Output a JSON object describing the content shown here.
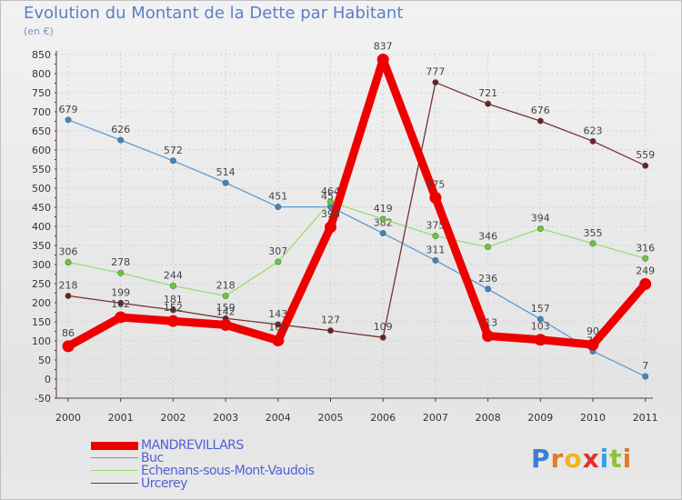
{
  "header": {
    "title": "Evolution du Montant de la Dette par Habitant",
    "subtitle": "(en €)"
  },
  "logo": {
    "letters": [
      "P",
      "r",
      "o",
      "x",
      "i",
      "t",
      "i"
    ],
    "colors": [
      "#3a7fd5",
      "#e07b2a",
      "#f0b520",
      "#e03030",
      "#3a9de0",
      "#8cc43c",
      "#e07b2a"
    ]
  },
  "chart_data": {
    "type": "line",
    "title": "Evolution du Montant de la Dette par Habitant",
    "ylabel": "(en €)",
    "xlabel": "",
    "categories": [
      "2000",
      "2001",
      "2002",
      "2003",
      "2004",
      "2005",
      "2006",
      "2007",
      "2008",
      "2009",
      "2010",
      "2011"
    ],
    "ylim": [
      -50,
      850
    ],
    "yticks": [
      "-50",
      "0",
      "50",
      "100",
      "150",
      "200",
      "250",
      "300",
      "350",
      "400",
      "450",
      "500",
      "550",
      "600",
      "650",
      "700",
      "750",
      "800",
      "850"
    ],
    "grid": true,
    "series": [
      {
        "name": "MANDREVILLARS",
        "color": "#ee0000",
        "marker_color": "#ee0000",
        "values": [
          86,
          162,
          152,
          142,
          101,
          398,
          837,
          475,
          113,
          103,
          90,
          249
        ],
        "labels": [
          "86",
          "162",
          "152",
          "142",
          "101",
          "398",
          "837",
          "475",
          "113",
          "103",
          "90",
          "249"
        ]
      },
      {
        "name": "Buc",
        "color": "#5b9bd5",
        "marker_color": "#3d85c6",
        "values": [
          679,
          626,
          572,
          514,
          451,
          451,
          382,
          311,
          236,
          157,
          73,
          7
        ],
        "labels": [
          "679",
          "626",
          "572",
          "514",
          "451",
          "451",
          "382",
          "311",
          "236",
          "157",
          "73",
          "7"
        ]
      },
      {
        "name": "Echenans-sous-Mont-Vaudois",
        "color": "#99dd77",
        "marker_color": "#66cc33",
        "values": [
          306,
          278,
          244,
          218,
          307,
          464,
          419,
          375,
          346,
          394,
          355,
          316
        ],
        "labels": [
          "306",
          "278",
          "244",
          "218",
          "307",
          "464",
          "419",
          "375",
          "346",
          "394",
          "355",
          "316"
        ]
      },
      {
        "name": "Urcerey",
        "color": "#7a3030",
        "marker_color": "#6b1f1f",
        "values": [
          218,
          199,
          181,
          159,
          143,
          127,
          109,
          null,
          721,
          676,
          623,
          559
        ],
        "extra_point": {
          "x_index": 7,
          "value": 777,
          "label": "777",
          "note": "line from 2006 to 2007 spikes"
        },
        "labels": [
          "218",
          "199",
          "181",
          "159",
          "143",
          "127",
          "109",
          "777",
          "721",
          "676",
          "623",
          "559"
        ]
      }
    ]
  },
  "legend": {
    "items": [
      {
        "label": "MANDREVILLARS",
        "color": "#ee0000",
        "width": 9
      },
      {
        "label": "Buc",
        "color": "#5b9bd5",
        "width": 1
      },
      {
        "label": "Echenans-sous-Mont-Vaudois",
        "color": "#99dd77",
        "width": 1
      },
      {
        "label": "Urcerey",
        "color": "#7a3030",
        "width": 1
      }
    ]
  }
}
